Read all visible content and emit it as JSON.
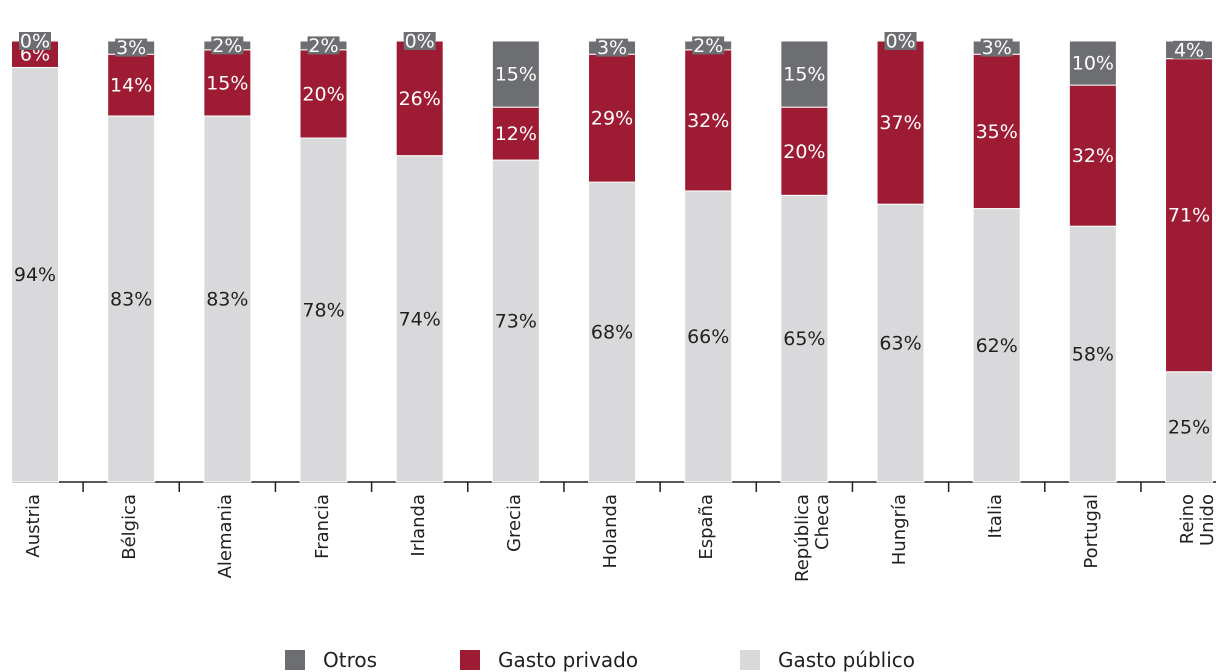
{
  "chart_data": {
    "type": "stacked-bar",
    "categories": [
      "Austria",
      "Bélgica",
      "Alemania",
      "Francia",
      "Irlanda",
      "Grecia",
      "Holanda",
      "España",
      "República Checa",
      "Hungría",
      "Italia",
      "Portugal",
      "Reino Unido"
    ],
    "series": [
      {
        "name": "Gasto público",
        "color": "#d9d9db",
        "label_color": "#231f20",
        "values": [
          94,
          83,
          83,
          78,
          74,
          73,
          68,
          66,
          65,
          63,
          62,
          58,
          25
        ],
        "value_labels": [
          "94%",
          "83%",
          "83%",
          "78%",
          "74%",
          "73%",
          "68%",
          "66%",
          "65%",
          "63%",
          "62%",
          "58%",
          "25%"
        ]
      },
      {
        "name": "Gasto privado",
        "color": "#9e1b34",
        "label_color": "#ffffff",
        "values": [
          6,
          14,
          15,
          20,
          26,
          12,
          29,
          32,
          20,
          37,
          35,
          32,
          71
        ],
        "value_labels": [
          "6%",
          "14%",
          "15%",
          "20%",
          "26%",
          "12%",
          "29%",
          "32%",
          "20%",
          "37%",
          "35%",
          "32%",
          "71%"
        ]
      },
      {
        "name": "Otros",
        "color": "#6d6e71",
        "label_color": "#ffffff",
        "values": [
          0,
          3,
          2,
          2,
          0,
          15,
          3,
          2,
          15,
          0,
          3,
          10,
          4
        ],
        "value_labels": [
          "0%",
          "3%",
          "2%",
          "2%",
          "0%",
          "15%",
          "3%",
          "2%",
          "15%",
          "0%",
          "3%",
          "10%",
          "4%"
        ]
      }
    ],
    "ylim": [
      0,
      100
    ],
    "legend_order": [
      2,
      1,
      0
    ]
  }
}
